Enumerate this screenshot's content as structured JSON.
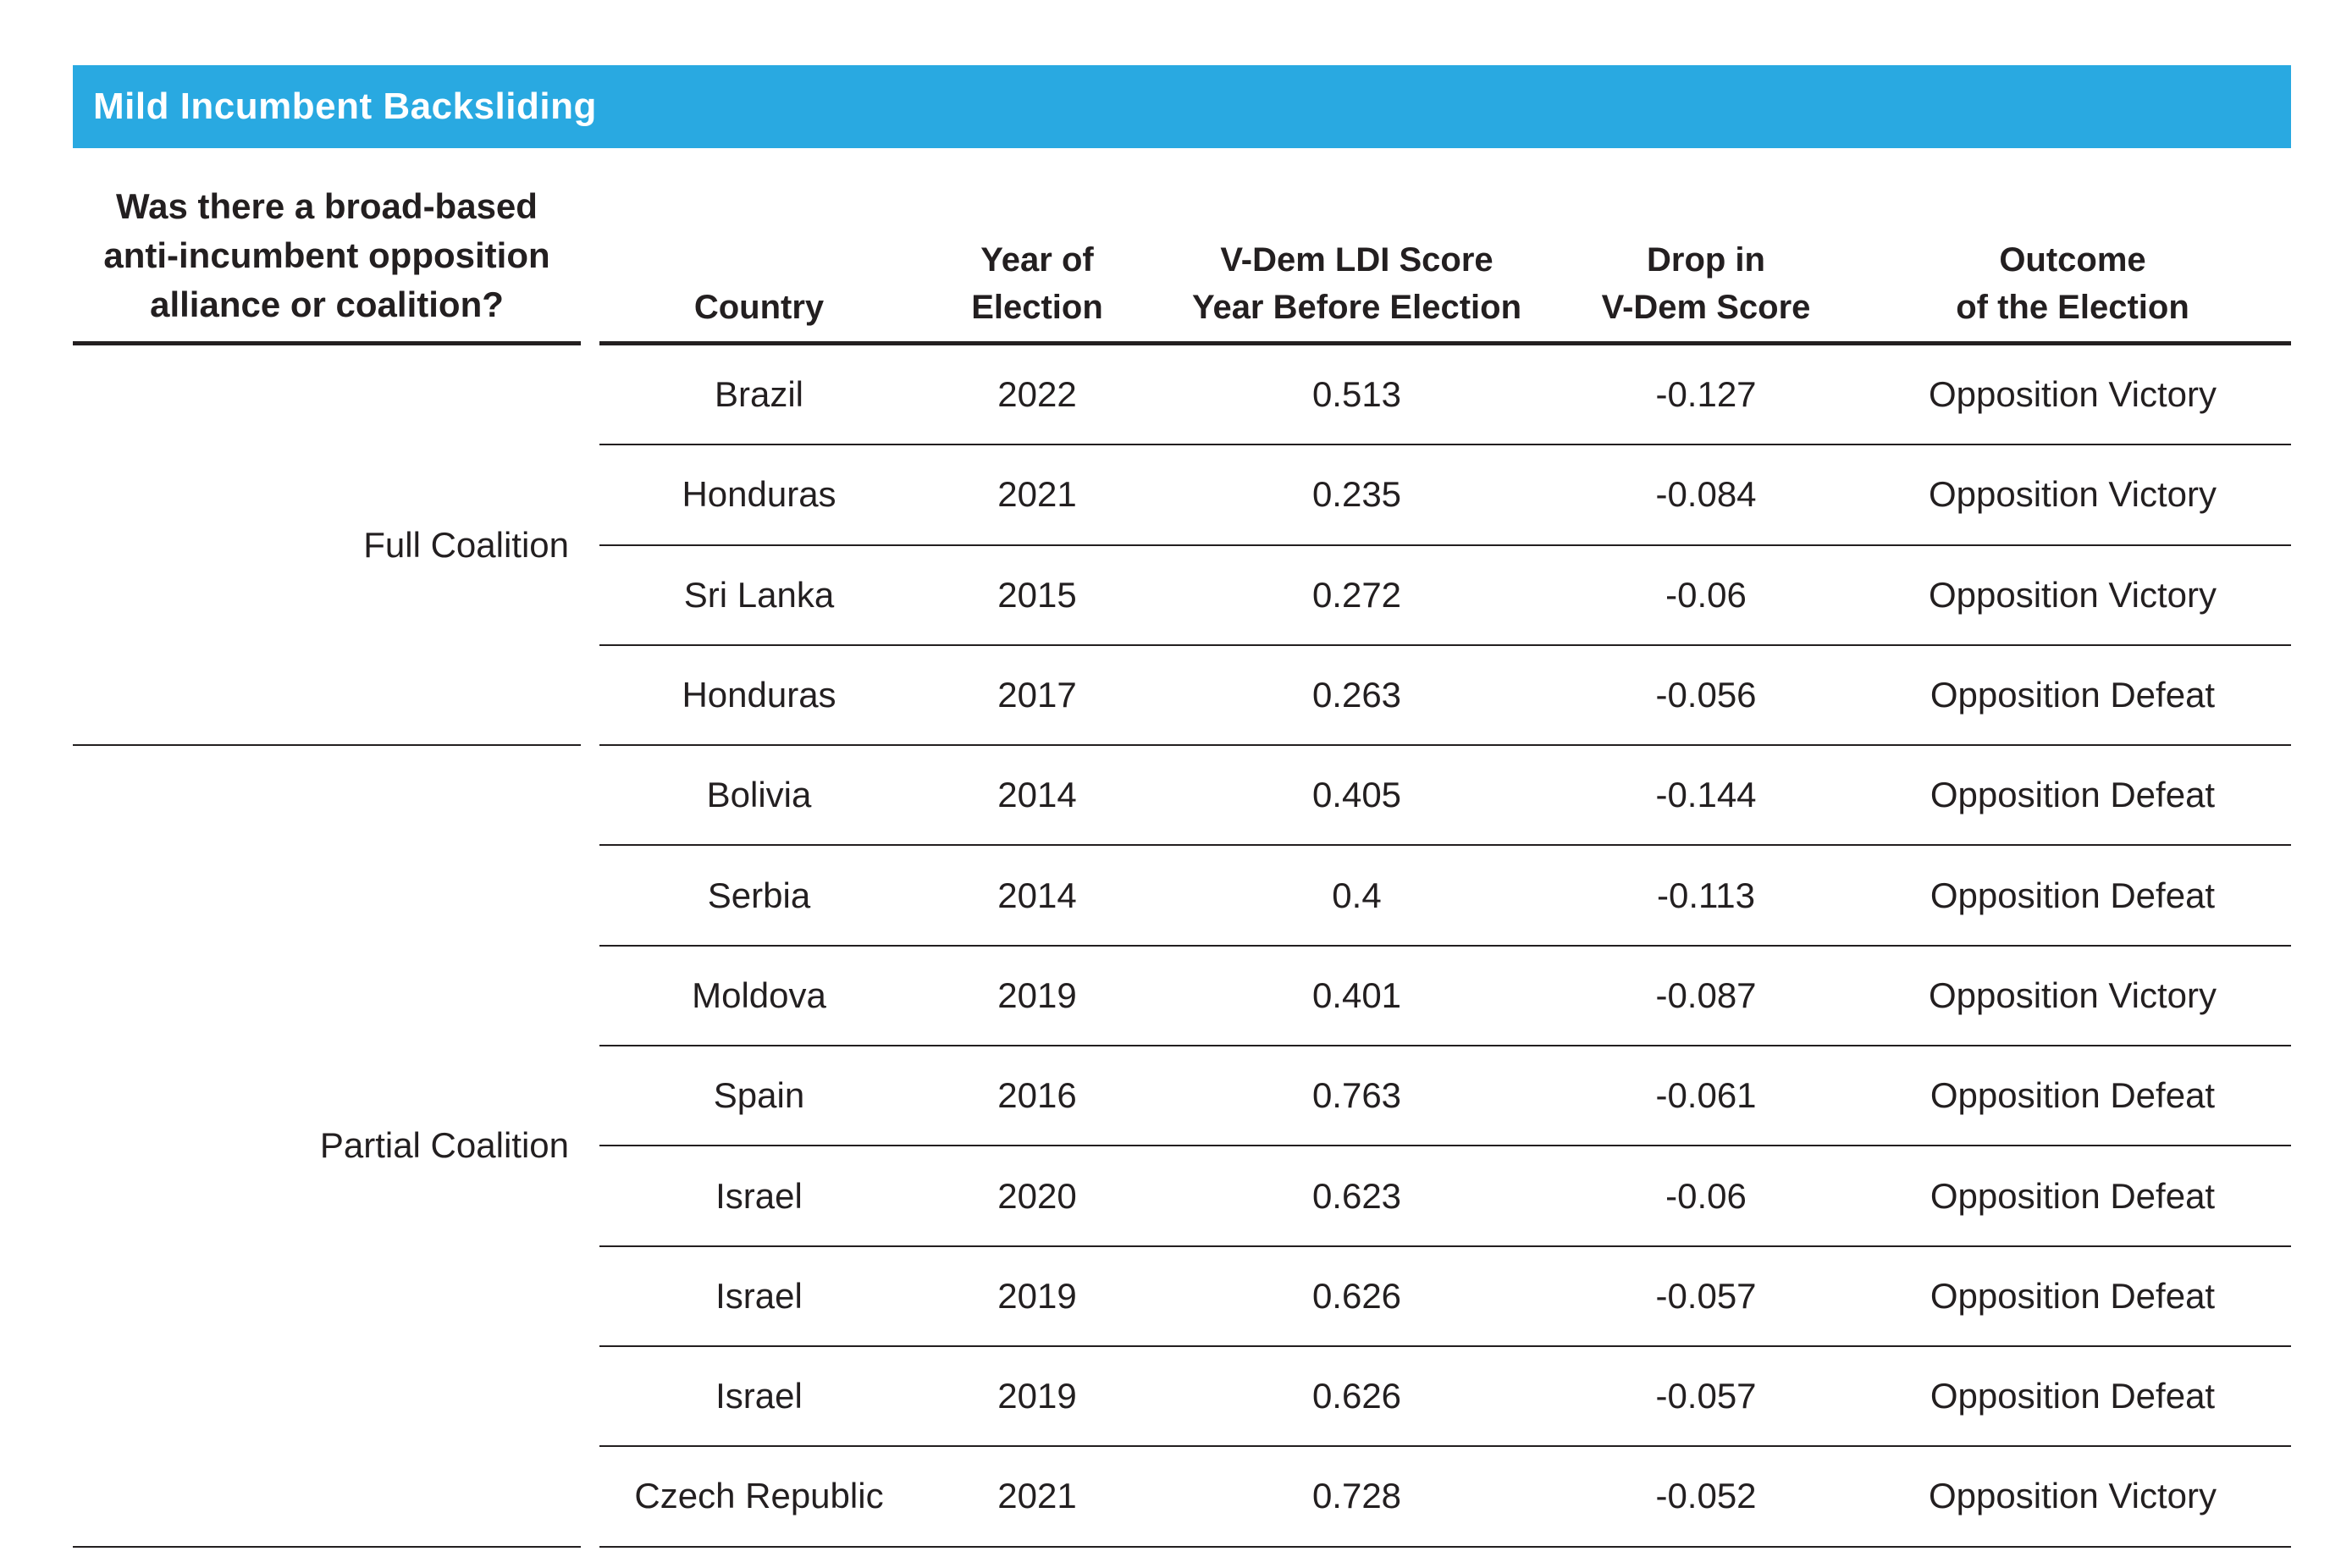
{
  "colors": {
    "header_bar_background": "#29A9E1",
    "header_bar_text": "#FFFFFF",
    "body_text": "#231F20",
    "rule_lines": "#231F20"
  },
  "chart_data": {
    "type": "table",
    "title": "Mild Incumbent Backsliding",
    "row_group_question": "Was there a broad-based anti-incumbent opposition alliance or coalition?",
    "columns": [
      {
        "line1": "",
        "line2": "Country"
      },
      {
        "line1": "Year of",
        "line2": "Election"
      },
      {
        "line1": "V-Dem LDI Score",
        "line2": "Year Before Election"
      },
      {
        "line1": "Drop in",
        "line2": "V-Dem Score"
      },
      {
        "line1": "Outcome",
        "line2": "of the Election"
      }
    ],
    "groups": [
      {
        "label": "Full Coalition",
        "rows": [
          {
            "country": "Brazil",
            "year": "2022",
            "ldi_score": "0.513",
            "drop": "-0.127",
            "outcome": "Opposition Victory"
          },
          {
            "country": "Honduras",
            "year": "2021",
            "ldi_score": "0.235",
            "drop": "-0.084",
            "outcome": "Opposition Victory"
          },
          {
            "country": "Sri Lanka",
            "year": "2015",
            "ldi_score": "0.272",
            "drop": "-0.06",
            "outcome": "Opposition Victory"
          },
          {
            "country": "Honduras",
            "year": "2017",
            "ldi_score": "0.263",
            "drop": "-0.056",
            "outcome": "Opposition Defeat"
          }
        ]
      },
      {
        "label": "Partial Coalition",
        "rows": [
          {
            "country": "Bolivia",
            "year": "2014",
            "ldi_score": "0.405",
            "drop": "-0.144",
            "outcome": "Opposition Defeat"
          },
          {
            "country": "Serbia",
            "year": "2014",
            "ldi_score": "0.4",
            "drop": "-0.113",
            "outcome": "Opposition Defeat"
          },
          {
            "country": "Moldova",
            "year": "2019",
            "ldi_score": "0.401",
            "drop": "-0.087",
            "outcome": "Opposition Victory"
          },
          {
            "country": "Spain",
            "year": "2016",
            "ldi_score": "0.763",
            "drop": "-0.061",
            "outcome": "Opposition Defeat"
          },
          {
            "country": "Israel",
            "year": "2020",
            "ldi_score": "0.623",
            "drop": "-0.06",
            "outcome": "Opposition Defeat"
          },
          {
            "country": "Israel",
            "year": "2019",
            "ldi_score": "0.626",
            "drop": "-0.057",
            "outcome": "Opposition Defeat"
          },
          {
            "country": "Israel",
            "year": "2019",
            "ldi_score": "0.626",
            "drop": "-0.057",
            "outcome": "Opposition Defeat"
          },
          {
            "country": "Czech Republic",
            "year": "2021",
            "ldi_score": "0.728",
            "drop": "-0.052",
            "outcome": "Opposition Victory"
          }
        ]
      }
    ]
  }
}
